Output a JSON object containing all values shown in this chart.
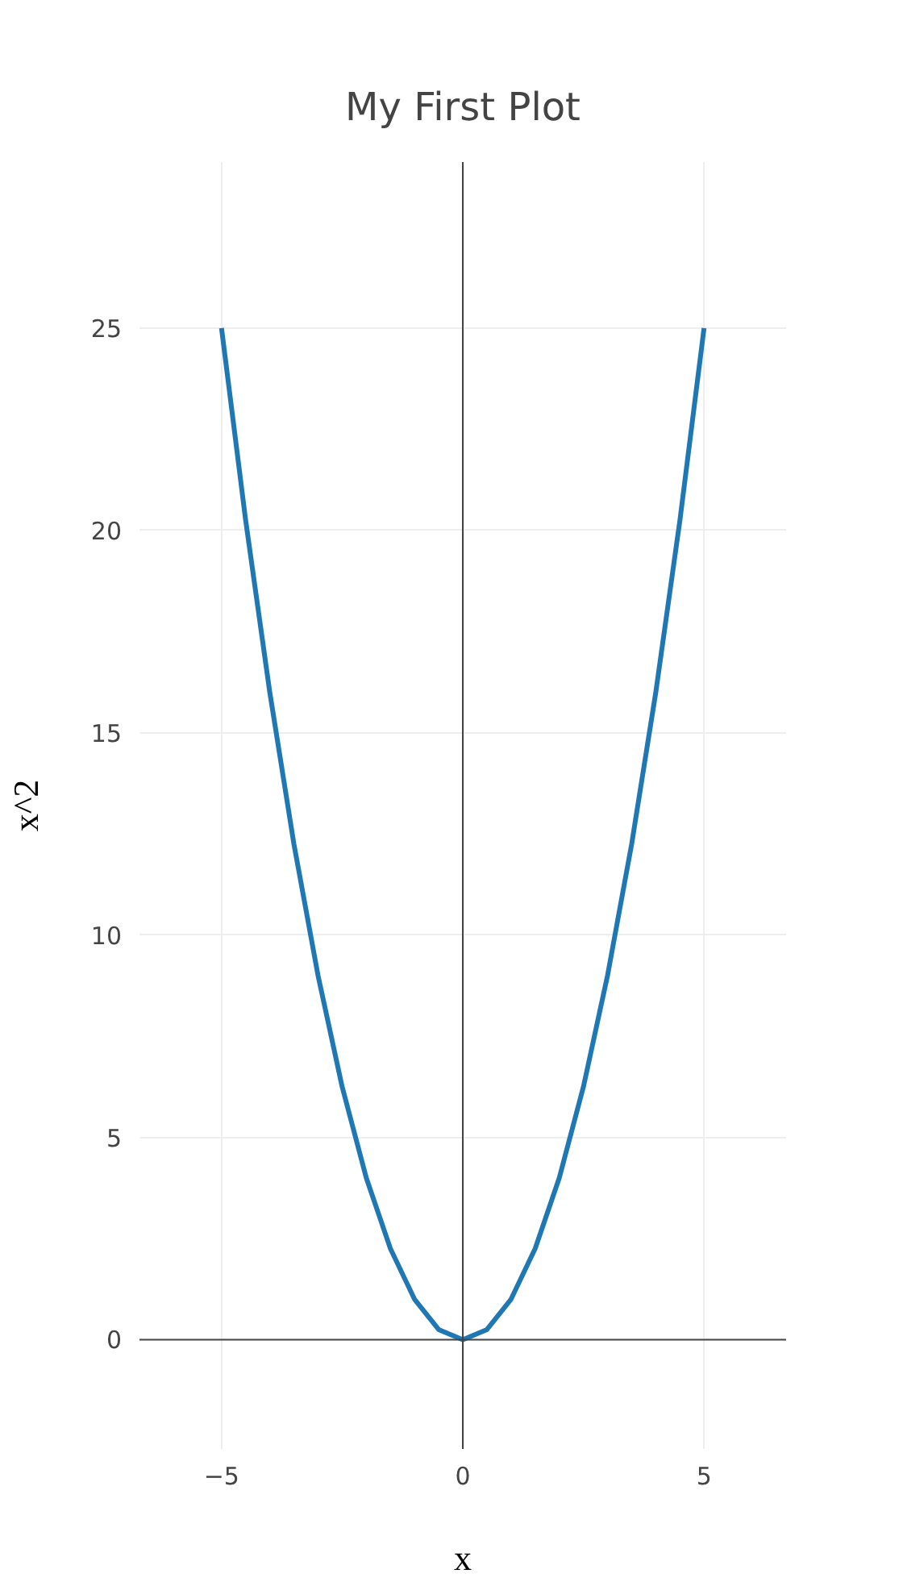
{
  "chart_data": {
    "type": "line",
    "title": "My First Plot",
    "xlabel": "x",
    "ylabel": "x^2",
    "x": [
      -5,
      -4.5,
      -4,
      -3.5,
      -3,
      -2.5,
      -2,
      -1.5,
      -1,
      -0.5,
      0,
      0.5,
      1,
      1.5,
      2,
      2.5,
      3,
      3.5,
      4,
      4.5,
      5
    ],
    "series": [
      {
        "color": "#1f77b4",
        "values": [
          25,
          20.25,
          16,
          12.25,
          9,
          6.25,
          4,
          2.25,
          1,
          0.25,
          0,
          0.25,
          1,
          2.25,
          4,
          6.25,
          9,
          12.25,
          16,
          20.25,
          25
        ]
      }
    ],
    "xlim": [
      -6.7,
      6.7
    ],
    "ylim": [
      -2.7,
      29.1
    ],
    "xticks": [
      {
        "value": -5,
        "label": "−5"
      },
      0,
      5
    ],
    "yticks": [
      0,
      5,
      10,
      15,
      20,
      25
    ],
    "grid": true,
    "marker": "none",
    "line_style": "solid"
  }
}
